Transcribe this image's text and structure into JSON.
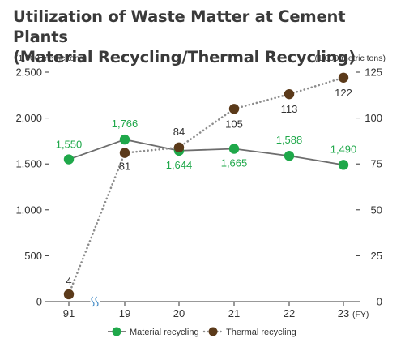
{
  "chart_data": {
    "type": "line",
    "title_line1": "Utilization of Waste Matter at Cement Plants",
    "title_line2": "(Material Recycling/Thermal Recycling)",
    "y_left_unit": "(1,000 metric tons)",
    "y_right_unit": "(1,000 metric tons)",
    "x_unit": "(FY)",
    "categories": [
      "91",
      "19",
      "20",
      "21",
      "22",
      "23"
    ],
    "y_left_ticks": [
      "0",
      "500",
      "1,000",
      "1,500",
      "2,000",
      "2,500"
    ],
    "y_right_ticks": [
      "0",
      "25",
      "50",
      "75",
      "100",
      "125"
    ],
    "ylim_left": [
      0,
      2500
    ],
    "ylim_right": [
      0,
      125
    ],
    "axis_break_after_index": 0,
    "series": [
      {
        "name": "Material recycling",
        "axis": "left",
        "color": "#1fa84a",
        "line_color": "#6d6d6d",
        "line_style": "solid",
        "x_indices": [
          0,
          1,
          2,
          3,
          4,
          5
        ],
        "values": [
          1550,
          1766,
          1644,
          1665,
          1588,
          1490
        ],
        "labels": [
          "1,550",
          "1,766",
          "1,644",
          "1,665",
          "1,588",
          "1,490"
        ]
      },
      {
        "name": "Thermal recycling",
        "axis": "right",
        "color": "#5b3a1a",
        "line_color": "#8c8c8c",
        "line_style": "dotted",
        "x_indices": [
          0,
          1,
          2,
          3,
          4,
          5
        ],
        "values": [
          4,
          81,
          84,
          105,
          113,
          122
        ],
        "labels": [
          "4",
          "81",
          "84",
          "105",
          "113",
          "122"
        ]
      }
    ],
    "legend_position": "bottom-center",
    "grid": false
  }
}
